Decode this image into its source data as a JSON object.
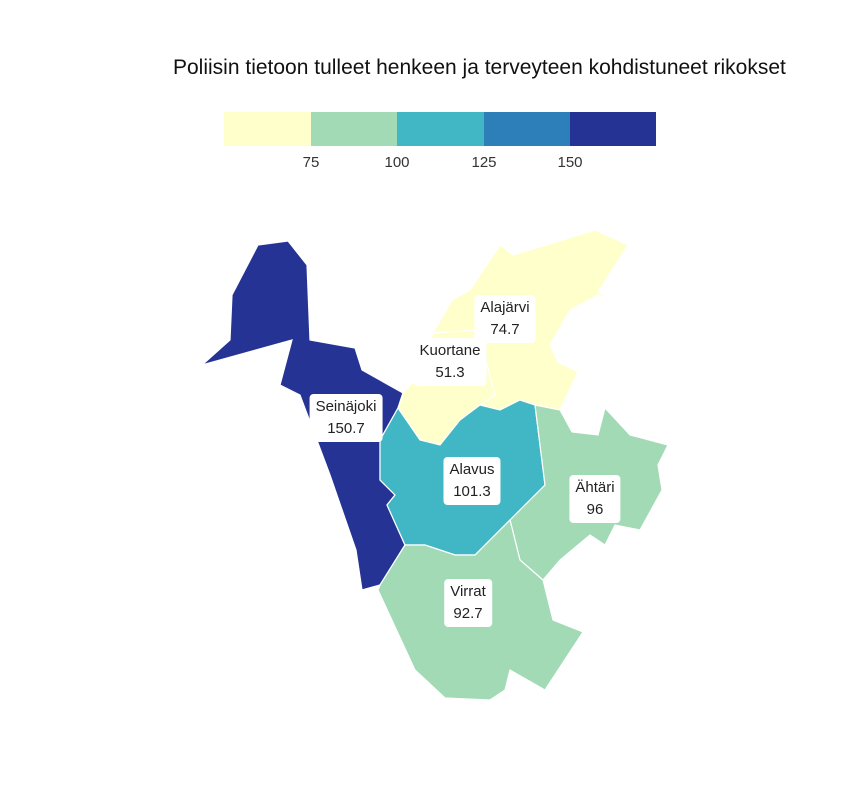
{
  "title": "Poliisin tietoon tulleet henkeen ja terveyteen kohdistuneet rikokset",
  "legend": {
    "ticks": [
      "75",
      "100",
      "125",
      "150"
    ],
    "colors": [
      "#ffffcc",
      "#a1dab4",
      "#41b6c4",
      "#2c7fb8",
      "#253494"
    ]
  },
  "municipalities": [
    {
      "name": "Seinäjoki",
      "value": "150.7",
      "color": "#253494"
    },
    {
      "name": "Kuortane",
      "value": "51.3",
      "color": "#ffffcc"
    },
    {
      "name": "Alajärvi",
      "value": "74.7",
      "color": "#ffffcc"
    },
    {
      "name": "Alavus",
      "value": "101.3",
      "color": "#41b6c4"
    },
    {
      "name": "Ähtäri",
      "value": "96",
      "color": "#a1dab4"
    },
    {
      "name": "Virrat",
      "value": "92.7",
      "color": "#a1dab4"
    }
  ]
}
